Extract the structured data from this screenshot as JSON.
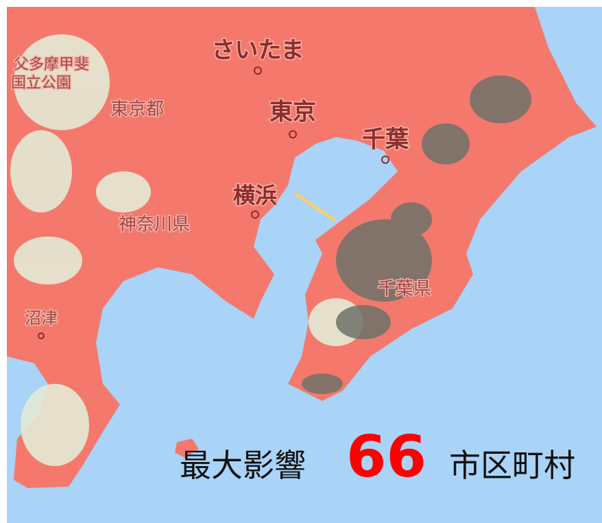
{
  "map": {
    "labels": [
      "さいたま",
      "東京",
      "千葉",
      "横浜",
      "東京都",
      "神奈川県",
      "千葉県",
      "沼津",
      "父多摩甲斐",
      "国立公園"
    ]
  },
  "overlay": {
    "prefix": "最大影響",
    "count": 66,
    "suffix": "市区町村"
  }
}
